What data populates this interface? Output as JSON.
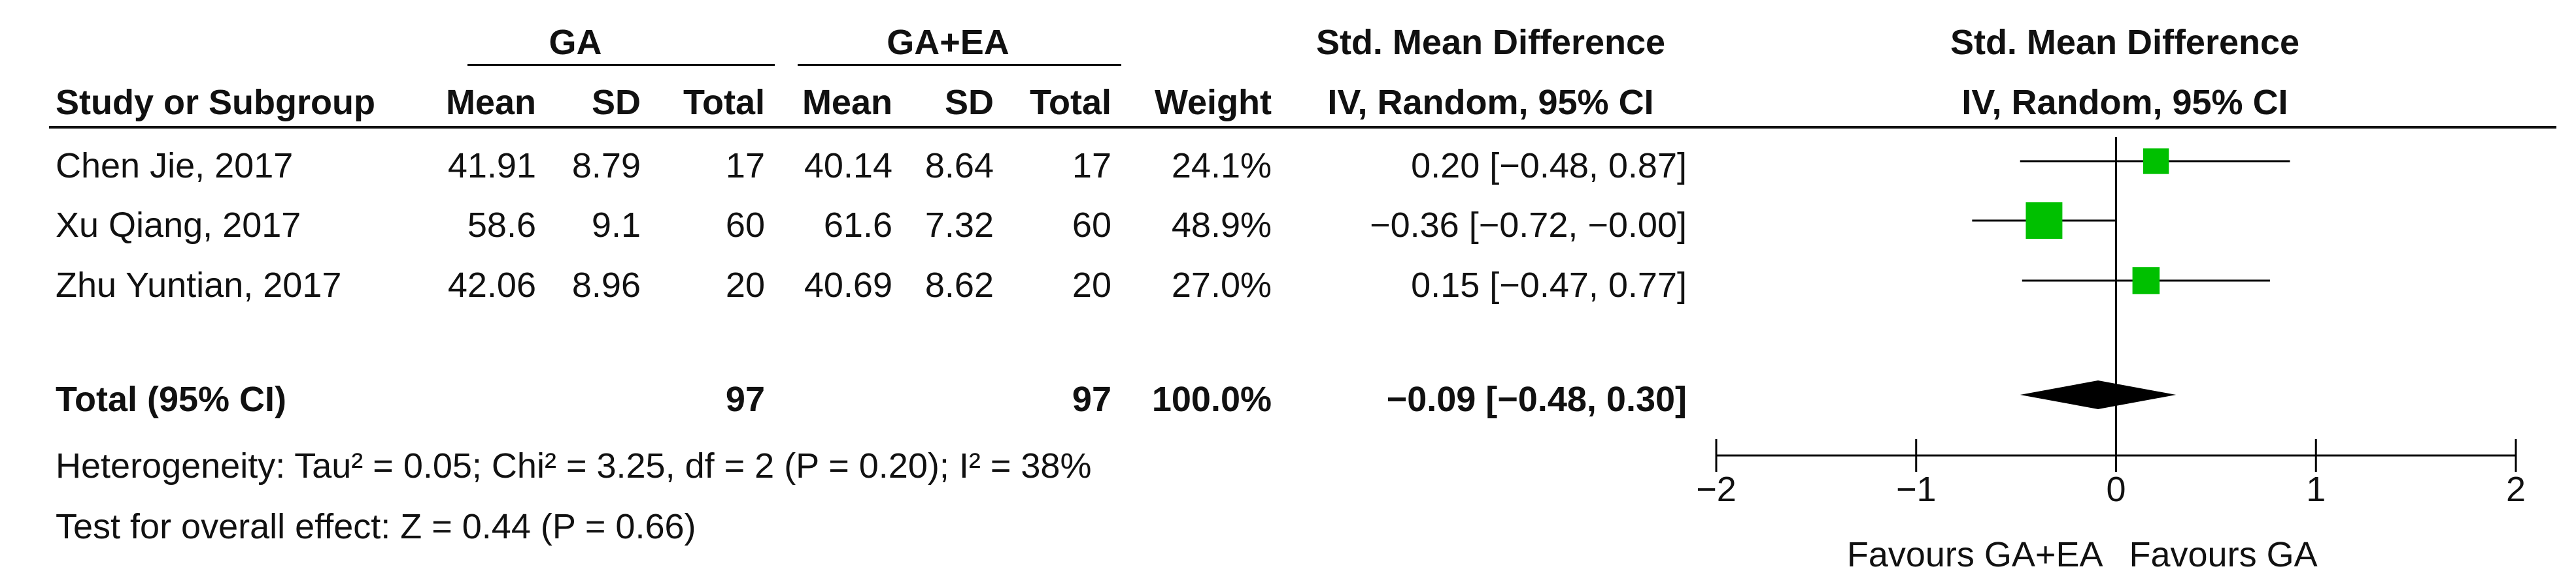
{
  "headers": {
    "group1": "GA",
    "group2": "GA+EA",
    "smd_title": "Std. Mean Difference",
    "smd_method": "IV, Random, 95% CI",
    "plot_title": "Std. Mean Difference",
    "plot_method": "IV, Random, 95% CI",
    "study": "Study or Subgroup",
    "mean1": "Mean",
    "sd1": "SD",
    "total1": "Total",
    "mean2": "Mean",
    "sd2": "SD",
    "total2": "Total",
    "weight": "Weight"
  },
  "studies": [
    {
      "name": "Chen Jie, 2017",
      "mean1": "41.91",
      "sd1": "8.79",
      "n1": "17",
      "mean2": "40.14",
      "sd2": "8.64",
      "n2": "17",
      "weight": "24.1%",
      "ci_text": "0.20 [−0.48, 0.87]"
    },
    {
      "name": "Xu Qiang, 2017",
      "mean1": "58.6",
      "sd1": "9.1",
      "n1": "60",
      "mean2": "61.6",
      "sd2": "7.32",
      "n2": "60",
      "weight": "48.9%",
      "ci_text": "−0.36 [−0.72, −0.00]"
    },
    {
      "name": "Zhu Yuntian, 2017",
      "mean1": "42.06",
      "sd1": "8.96",
      "n1": "20",
      "mean2": "40.69",
      "sd2": "8.62",
      "n2": "20",
      "weight": "27.0%",
      "ci_text": "0.15 [−0.47, 0.77]"
    }
  ],
  "total": {
    "label": "Total (95% CI)",
    "n1": "97",
    "n2": "97",
    "weight": "100.0%",
    "ci_text": "−0.09 [−0.48, 0.30]"
  },
  "heterogeneity": "Heterogeneity: Tau² = 0.05; Chi² = 3.25, df = 2 (P = 0.20); I² = 38%",
  "overall_effect": "Test for overall effect: Z = 0.44 (P = 0.66)",
  "colors": {
    "marker": "#00c000",
    "diamond": "#000000",
    "line": "#000000"
  },
  "chart_data": {
    "type": "scatter",
    "subtype": "forest",
    "title": "Std. Mean Difference",
    "subtitle": "IV, Random, 95% CI",
    "xlim": [
      -2,
      2
    ],
    "xticks": [
      -2,
      -1,
      0,
      1,
      2
    ],
    "xtick_labels": [
      "−2",
      "−1",
      "0",
      "1",
      "2"
    ],
    "favours_left": "Favours GA+EA",
    "favours_right": "Favours GA",
    "studies": [
      {
        "name": "Chen Jie, 2017",
        "estimate": 0.2,
        "lower": -0.48,
        "upper": 0.87,
        "weight": 24.1
      },
      {
        "name": "Xu Qiang, 2017",
        "estimate": -0.36,
        "lower": -0.72,
        "upper": -0.0,
        "weight": 48.9
      },
      {
        "name": "Zhu Yuntian, 2017",
        "estimate": 0.15,
        "lower": -0.47,
        "upper": 0.77,
        "weight": 27.0
      }
    ],
    "pooled": {
      "name": "Total (95% CI)",
      "estimate": -0.09,
      "lower": -0.48,
      "upper": 0.3
    }
  }
}
